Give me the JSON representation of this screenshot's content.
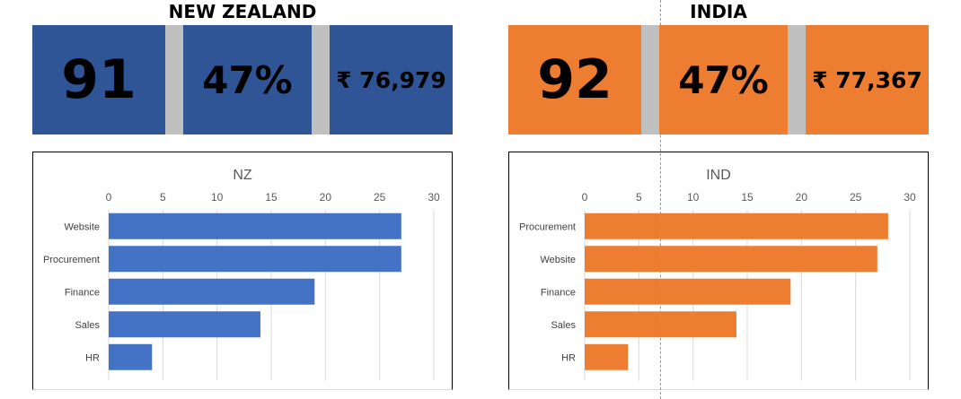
{
  "colors": {
    "nz": "#2f5597",
    "nz_bar": "#4472c4",
    "ind": "#ed7d31",
    "ind_bar": "#ed7d31",
    "separator": "#c0c0c0"
  },
  "panels": [
    {
      "title": "NEW ZEALAND",
      "kpis": {
        "count": "91",
        "percent": "47%",
        "amount": "₹ 76,979"
      }
    },
    {
      "title": "INDIA",
      "kpis": {
        "count": "92",
        "percent": "47%",
        "amount": "₹ 77,367"
      }
    }
  ],
  "chart_data": [
    {
      "type": "bar",
      "orientation": "horizontal",
      "title": "NZ",
      "categories": [
        "Website",
        "Procurement",
        "Finance",
        "Sales",
        "HR"
      ],
      "values": [
        27,
        27,
        19,
        14,
        4
      ],
      "xlim": [
        0,
        30
      ],
      "xticks": [
        0,
        5,
        10,
        15,
        20,
        25,
        30
      ],
      "grid": true,
      "axis_position": "top",
      "color": "#4472c4"
    },
    {
      "type": "bar",
      "orientation": "horizontal",
      "title": "IND",
      "categories": [
        "Procurement",
        "Website",
        "Finance",
        "Sales",
        "HR"
      ],
      "values": [
        28,
        27,
        19,
        14,
        4
      ],
      "xlim": [
        0,
        30
      ],
      "xticks": [
        0,
        5,
        10,
        15,
        20,
        25,
        30
      ],
      "grid": true,
      "axis_position": "top",
      "color": "#ed7d31"
    }
  ]
}
